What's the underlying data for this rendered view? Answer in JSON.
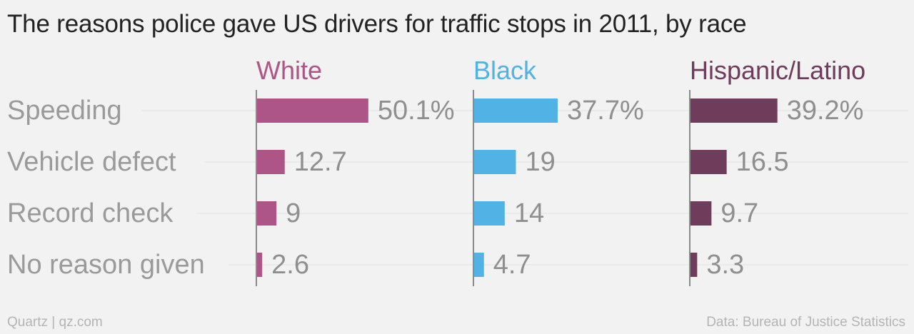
{
  "chart_data": {
    "type": "bar",
    "orientation": "horizontal",
    "title": "The reasons police gave US drivers for traffic stops in 2011, by race",
    "categories": [
      "Speeding",
      "Vehicle defect",
      "Record check",
      "No reason given"
    ],
    "series": [
      {
        "name": "White",
        "color": "#ad5586",
        "values": [
          50.1,
          12.7,
          9,
          2.6
        ],
        "labels": [
          "50.1%",
          "12.7",
          "9",
          "2.6"
        ]
      },
      {
        "name": "Black",
        "color": "#51b2e5",
        "values": [
          37.7,
          19,
          14,
          4.7
        ],
        "labels": [
          "37.7%",
          "19",
          "14",
          "4.7"
        ]
      },
      {
        "name": "Hispanic/Latino",
        "color": "#703c5c",
        "values": [
          39.2,
          16.5,
          9.7,
          3.3
        ],
        "labels": [
          "39.2%",
          "16.5",
          "9.7",
          "3.3"
        ]
      }
    ],
    "unit": "%",
    "grid": true,
    "layout": "small multiples, one panel per series"
  },
  "footer": {
    "source_left": "Quartz | qz.com",
    "source_right": "Data: Bureau of Justice Statistics"
  }
}
